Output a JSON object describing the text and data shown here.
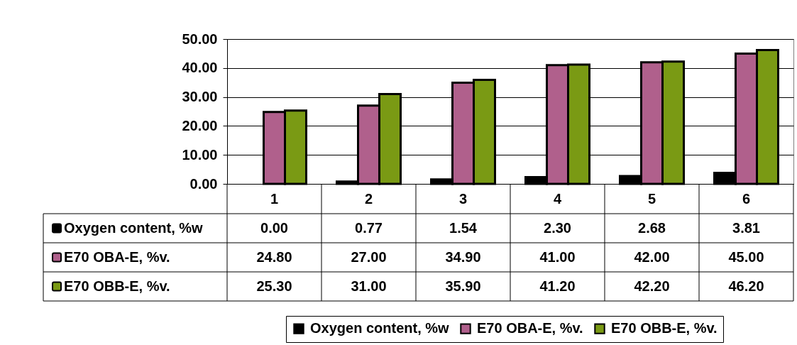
{
  "chart_data": {
    "type": "bar",
    "categories": [
      "1",
      "2",
      "3",
      "4",
      "5",
      "6"
    ],
    "series": [
      {
        "name": "Oxygen content, %w",
        "color": "#000000",
        "values": [
          0.0,
          0.77,
          1.54,
          2.3,
          2.68,
          3.81
        ],
        "value_labels": [
          "0.00",
          "0.77",
          "1.54",
          "2.30",
          "2.68",
          "3.81"
        ]
      },
      {
        "name": "E70 OBA-E, %v.",
        "color": "#b0608c",
        "values": [
          24.8,
          27.0,
          34.9,
          41.0,
          42.0,
          45.0
        ],
        "value_labels": [
          "24.80",
          "27.00",
          "34.90",
          "41.00",
          "42.00",
          "45.00"
        ]
      },
      {
        "name": "E70 OBB-E, %v.",
        "color": "#7a9a14",
        "values": [
          25.3,
          31.0,
          35.9,
          41.2,
          42.2,
          46.2
        ],
        "value_labels": [
          "25.30",
          "31.00",
          "35.90",
          "41.20",
          "42.20",
          "46.20"
        ]
      }
    ],
    "ylim": [
      0,
      50
    ],
    "yticks": [
      {
        "value": 0,
        "label": "0.00"
      },
      {
        "value": 10,
        "label": "10.00"
      },
      {
        "value": 20,
        "label": "20.00"
      },
      {
        "value": 30,
        "label": "30.00"
      },
      {
        "value": 40,
        "label": "40.00"
      },
      {
        "value": 50,
        "label": "50.00"
      }
    ],
    "grid": "y",
    "legend": "bottom"
  }
}
